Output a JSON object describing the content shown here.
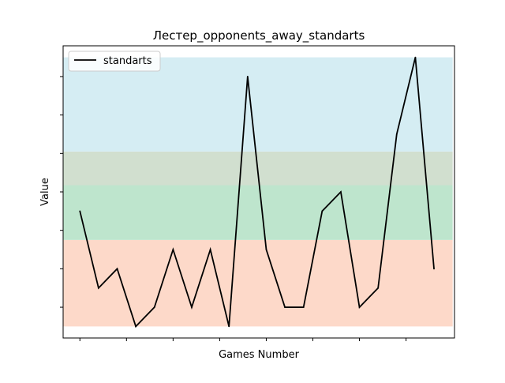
{
  "chart_data": {
    "type": "line",
    "title": "Лестер_opponents_away_standarts",
    "xlabel": "Games Number",
    "ylabel": "Value",
    "x": [
      0,
      1,
      2,
      3,
      4,
      5,
      6,
      7,
      8,
      9,
      10,
      11,
      12,
      13,
      14,
      15,
      16,
      17,
      18,
      19,
      20
    ],
    "series": [
      {
        "name": "standarts",
        "color": "#000000",
        "values": [
          5,
          1,
          2,
          -1,
          0,
          3,
          0,
          3,
          -1,
          12,
          3,
          0,
          0,
          5,
          6,
          0,
          1,
          9,
          13,
          2,
          null
        ]
      }
    ],
    "xlim": [
      -0.9,
      20.1
    ],
    "ylim": [
      -1.6,
      13.6
    ],
    "x_ticks": [
      0,
      2.5,
      5,
      7.5,
      10,
      12.5,
      15,
      17.5
    ],
    "y_ticks": [
      0,
      2,
      4,
      6,
      8,
      10,
      12
    ],
    "tick_labels_shown": false,
    "bands": [
      {
        "from": -1,
        "to": 3.5,
        "color": "#fdd9c9"
      },
      {
        "from": 3.5,
        "to": 6.35,
        "color": "#bee5cd"
      },
      {
        "from": 6.35,
        "to": 8.1,
        "color": "#d1dfcf"
      },
      {
        "from": 8.1,
        "to": 13,
        "color": "#d5edf3"
      }
    ],
    "legend": {
      "position": "top-left"
    },
    "grid": false
  }
}
